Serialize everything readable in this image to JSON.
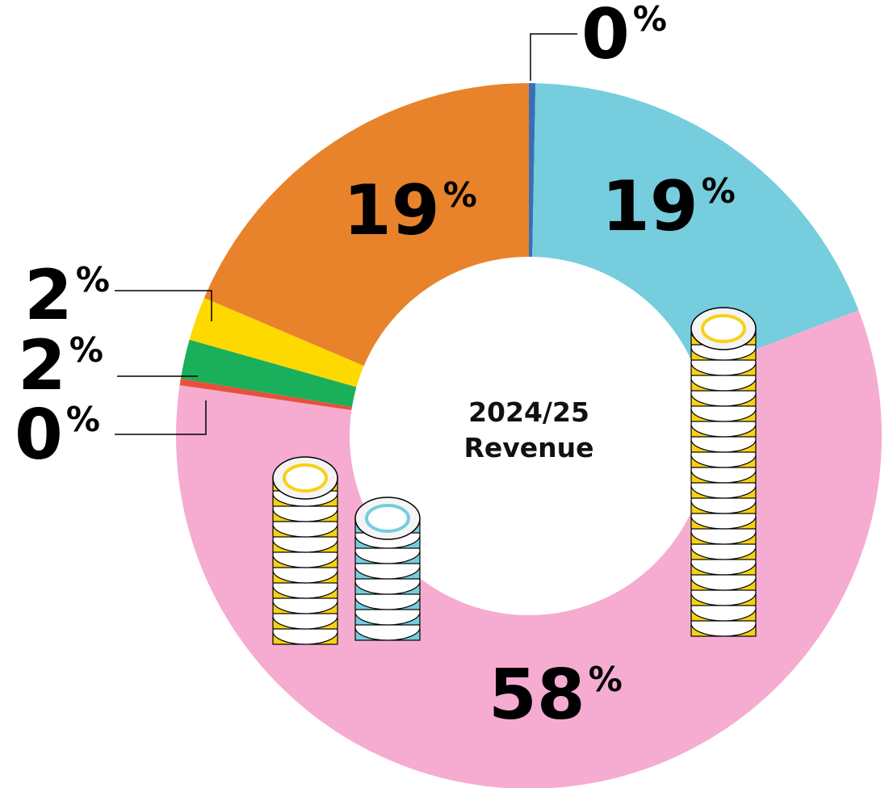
{
  "chart_data": {
    "type": "pie",
    "title": "2024/25 Revenue",
    "categories": [
      null,
      null,
      null,
      null,
      null,
      null,
      null
    ],
    "values": [
      0.3,
      18.9,
      58.1,
      0.3,
      1.8,
      2.0,
      18.6
    ],
    "value_labels": [
      "0%",
      "19%",
      "58%",
      "0%",
      "2%",
      "2%",
      "19%"
    ],
    "colors": [
      "#3a6fb5",
      "#76cddd",
      "#f5acd0",
      "#e8503a",
      "#1aaf5a",
      "#fdd900",
      "#e8832b"
    ]
  }
}
